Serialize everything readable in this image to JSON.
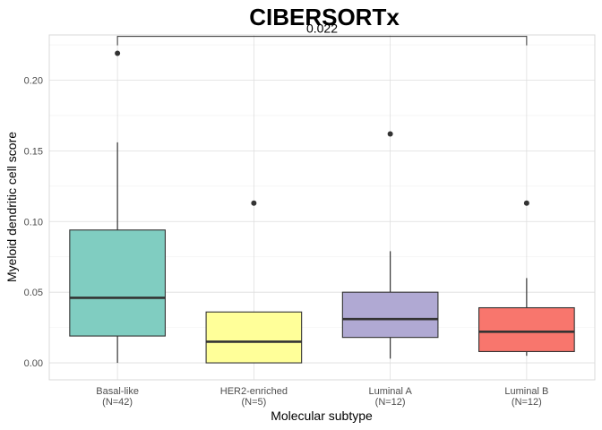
{
  "chart_data": {
    "type": "box",
    "title": "CIBERSORTx",
    "xlabel": "Molecular subtype",
    "ylabel": "Myeloid dendritic cell score",
    "ylim": [
      -0.012,
      0.232
    ],
    "yticks": [
      0.0,
      0.05,
      0.1,
      0.15,
      0.2
    ],
    "ytick_labels": [
      "0.00",
      "0.05",
      "0.10",
      "0.15",
      "0.20"
    ],
    "grid": true,
    "groups": [
      {
        "category": "Basal-like",
        "n_label": "(N=42)",
        "color": "#80cdc1",
        "whisker_low": 0.0,
        "q1": 0.019,
        "median": 0.046,
        "q3": 0.094,
        "whisker_high": 0.156,
        "outliers": [
          0.219
        ]
      },
      {
        "category": "HER2-enriched",
        "n_label": "(N=5)",
        "color": "#ffff99",
        "whisker_low": 0.0,
        "q1": 0.0,
        "median": 0.015,
        "q3": 0.036,
        "whisker_high": 0.036,
        "outliers": [
          0.113
        ]
      },
      {
        "category": "Luminal A",
        "n_label": "(N=12)",
        "color": "#b0a9d3",
        "whisker_low": 0.003,
        "q1": 0.018,
        "median": 0.031,
        "q3": 0.05,
        "whisker_high": 0.079,
        "outliers": [
          0.162
        ]
      },
      {
        "category": "Luminal B",
        "n_label": "(N=12)",
        "color": "#f8766d",
        "whisker_low": 0.005,
        "q1": 0.008,
        "median": 0.022,
        "q3": 0.039,
        "whisker_high": 0.06,
        "outliers": [
          0.113
        ]
      }
    ],
    "comparison": {
      "from": "Basal-like",
      "to": "Luminal B",
      "label": "0.022",
      "y": 0.231
    }
  }
}
